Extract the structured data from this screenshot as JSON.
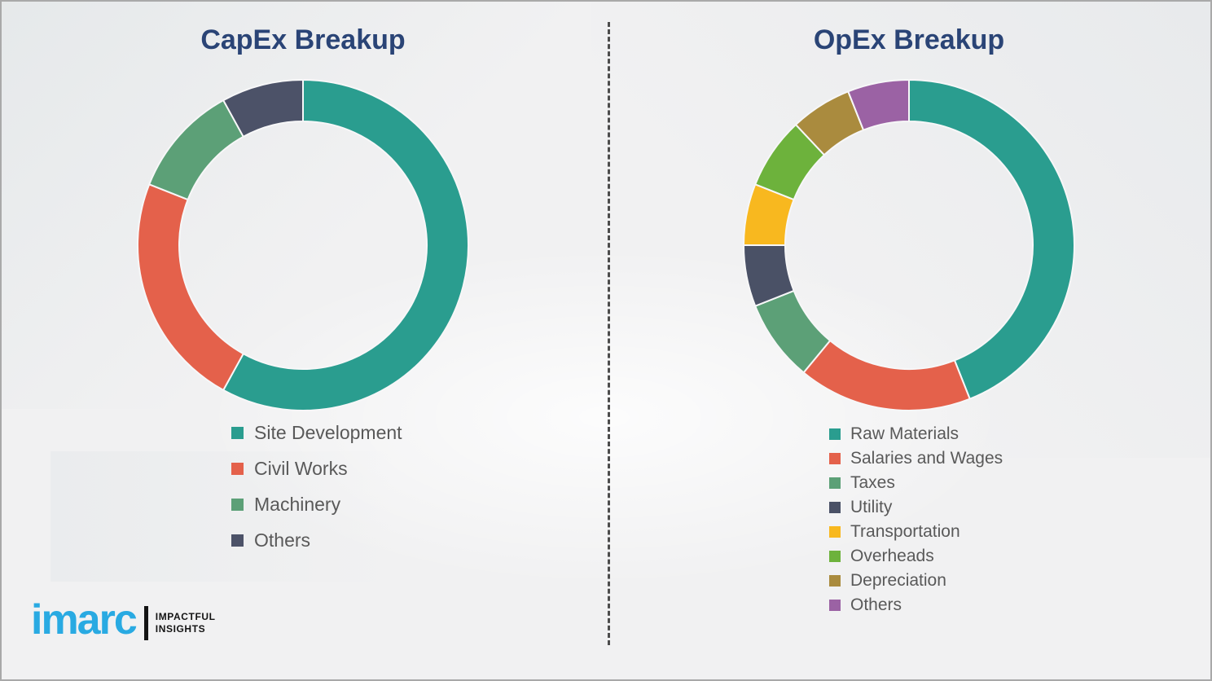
{
  "page": {
    "background_color": "#f1f1f2",
    "border_color": "#a9a9a9",
    "divider_color": "#4d4d4d",
    "title_color": "#2a4476",
    "legend_text_color": "#595959"
  },
  "chart_data": [
    {
      "type": "pie",
      "subtype": "donut",
      "title": "CapEx Breakup",
      "categories": [
        "Site Development",
        "Civil Works",
        "Machinery",
        "Others"
      ],
      "values": [
        58,
        23,
        11,
        8
      ],
      "units": "percent (estimated, no data labels shown)",
      "colors": [
        "#2a9d8f",
        "#e4614b",
        "#5ca077",
        "#4c5268"
      ],
      "legend_position": "below-left",
      "start_angle_deg": 0,
      "direction": "clockwise"
    },
    {
      "type": "pie",
      "subtype": "donut",
      "title": "OpEx Breakup",
      "categories": [
        "Raw Materials",
        "Salaries and Wages",
        "Taxes",
        "Utility",
        "Transportation",
        "Overheads",
        "Depreciation",
        "Others"
      ],
      "values": [
        44,
        17,
        8,
        6,
        6,
        7,
        6,
        6
      ],
      "units": "percent (estimated, no data labels shown)",
      "colors": [
        "#2a9d8f",
        "#e4614b",
        "#5ca077",
        "#4a5166",
        "#f8b81f",
        "#6db23c",
        "#aa8b3e",
        "#9b62a4"
      ],
      "legend_position": "below-left",
      "start_angle_deg": 0,
      "direction": "clockwise"
    }
  ],
  "logo": {
    "brand": "imarc",
    "brand_color": "#29aae2",
    "tagline_line1": "IMPACTFUL",
    "tagline_line2": "INSIGHTS"
  }
}
